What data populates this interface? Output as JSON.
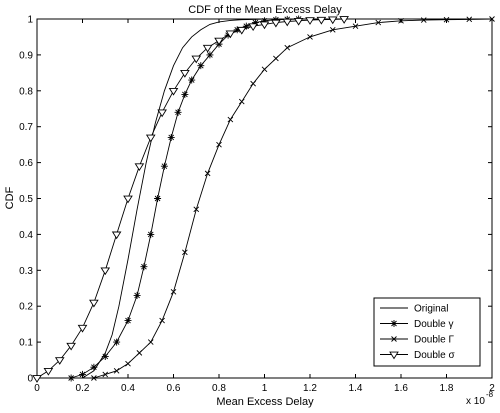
{
  "chart_data": {
    "type": "line",
    "title": "CDF of the Mean Excess Delay",
    "xlabel": "Mean Excess Delay",
    "ylabel": "CDF",
    "x_multiplier_base": "x 10",
    "x_multiplier_exp": "-8",
    "xlim": [
      0,
      2
    ],
    "ylim": [
      0,
      1
    ],
    "xticks": [
      0,
      0.2,
      0.4,
      0.6,
      0.8,
      1,
      1.2,
      1.4,
      1.6,
      1.8,
      2
    ],
    "xtick_labels": [
      "0",
      "0.2",
      "0.4",
      "0.6",
      "0.8",
      "1",
      "1.2",
      "1.4",
      "1.6",
      "1.8",
      "2"
    ],
    "yticks": [
      0,
      0.1,
      0.2,
      0.3,
      0.4,
      0.5,
      0.6,
      0.7,
      0.8,
      0.9,
      1
    ],
    "ytick_labels": [
      "0",
      "0.1",
      "0.2",
      "0.3",
      "0.4",
      "0.5",
      "0.6",
      "0.7",
      "0.8",
      "0.9",
      "1"
    ],
    "grid": false,
    "legend_position": "bottom-right",
    "series": [
      {
        "name": "Original",
        "marker": "none",
        "x": [
          0.2,
          0.25,
          0.3,
          0.33,
          0.36,
          0.4,
          0.44,
          0.48,
          0.52,
          0.56,
          0.6,
          0.64,
          0.68,
          0.72,
          0.76,
          0.8,
          0.85,
          0.9,
          0.95,
          1.0
        ],
        "y": [
          0.0,
          0.02,
          0.07,
          0.12,
          0.2,
          0.33,
          0.47,
          0.6,
          0.71,
          0.8,
          0.87,
          0.92,
          0.95,
          0.97,
          0.985,
          0.992,
          0.996,
          0.998,
          0.999,
          1.0
        ]
      },
      {
        "name": "Double γ",
        "marker": "star",
        "x": [
          0.15,
          0.2,
          0.25,
          0.3,
          0.35,
          0.4,
          0.44,
          0.47,
          0.5,
          0.53,
          0.56,
          0.59,
          0.62,
          0.65,
          0.68,
          0.72,
          0.76,
          0.8,
          0.84,
          0.88,
          0.92,
          0.96,
          1.0,
          1.05,
          1.1,
          1.15
        ],
        "y": [
          0.0,
          0.01,
          0.03,
          0.06,
          0.1,
          0.16,
          0.23,
          0.31,
          0.4,
          0.5,
          0.59,
          0.67,
          0.74,
          0.79,
          0.83,
          0.87,
          0.9,
          0.93,
          0.955,
          0.97,
          0.98,
          0.99,
          0.995,
          0.998,
          0.999,
          1.0
        ]
      },
      {
        "name": "Double Γ",
        "marker": "x",
        "x": [
          0.25,
          0.3,
          0.35,
          0.4,
          0.45,
          0.5,
          0.55,
          0.6,
          0.65,
          0.7,
          0.75,
          0.8,
          0.85,
          0.9,
          0.95,
          1.0,
          1.05,
          1.1,
          1.2,
          1.3,
          1.4,
          1.5,
          1.6,
          1.7,
          1.8,
          1.9,
          2.0
        ],
        "y": [
          0.0,
          0.01,
          0.02,
          0.04,
          0.07,
          0.1,
          0.16,
          0.24,
          0.35,
          0.47,
          0.57,
          0.65,
          0.72,
          0.77,
          0.82,
          0.86,
          0.89,
          0.92,
          0.95,
          0.97,
          0.98,
          0.99,
          0.995,
          0.997,
          0.998,
          0.999,
          1.0
        ]
      },
      {
        "name": "Double σ",
        "marker": "triangle-down",
        "x": [
          0.0,
          0.05,
          0.1,
          0.15,
          0.2,
          0.25,
          0.3,
          0.35,
          0.4,
          0.45,
          0.5,
          0.55,
          0.6,
          0.65,
          0.7,
          0.75,
          0.8,
          0.85,
          0.9,
          0.95,
          1.0,
          1.05,
          1.1,
          1.15,
          1.2,
          1.25,
          1.3,
          1.35
        ],
        "y": [
          0.0,
          0.02,
          0.05,
          0.09,
          0.14,
          0.21,
          0.3,
          0.4,
          0.5,
          0.59,
          0.67,
          0.74,
          0.8,
          0.85,
          0.89,
          0.92,
          0.94,
          0.96,
          0.97,
          0.98,
          0.985,
          0.99,
          0.993,
          0.995,
          0.997,
          0.998,
          0.999,
          1.0
        ]
      }
    ]
  }
}
